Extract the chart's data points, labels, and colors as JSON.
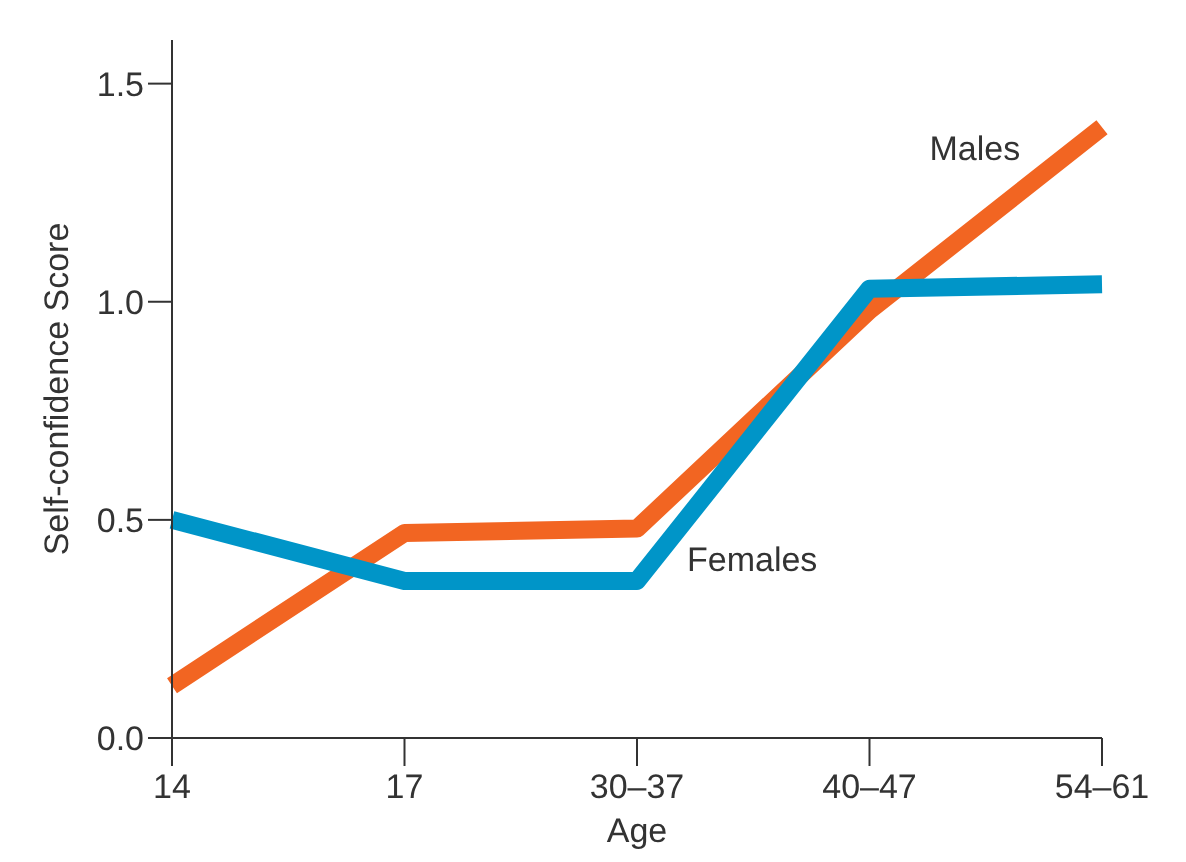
{
  "chart_data": {
    "type": "line",
    "xlabel": "Age",
    "ylabel": "Self-confidence Score",
    "categories": [
      "14",
      "17",
      "30–37",
      "40–47",
      "54–61"
    ],
    "series": [
      {
        "name": "Males",
        "color": "#f26522",
        "values": [
          0.12,
          0.47,
          0.48,
          0.98,
          1.4
        ]
      },
      {
        "name": "Females",
        "color": "#0095c8",
        "values": [
          0.5,
          0.36,
          0.36,
          1.03,
          1.04
        ]
      }
    ],
    "ylim": [
      0,
      1.6
    ],
    "yticks": [
      {
        "value": 0,
        "label": "0.0"
      },
      {
        "value": 0.5,
        "label": "0.5"
      },
      {
        "value": 1,
        "label": "1.0"
      },
      {
        "value": 1.5,
        "label": "1.5"
      }
    ],
    "grid": false,
    "legend": false,
    "marker": "none",
    "line_style": "solid"
  }
}
